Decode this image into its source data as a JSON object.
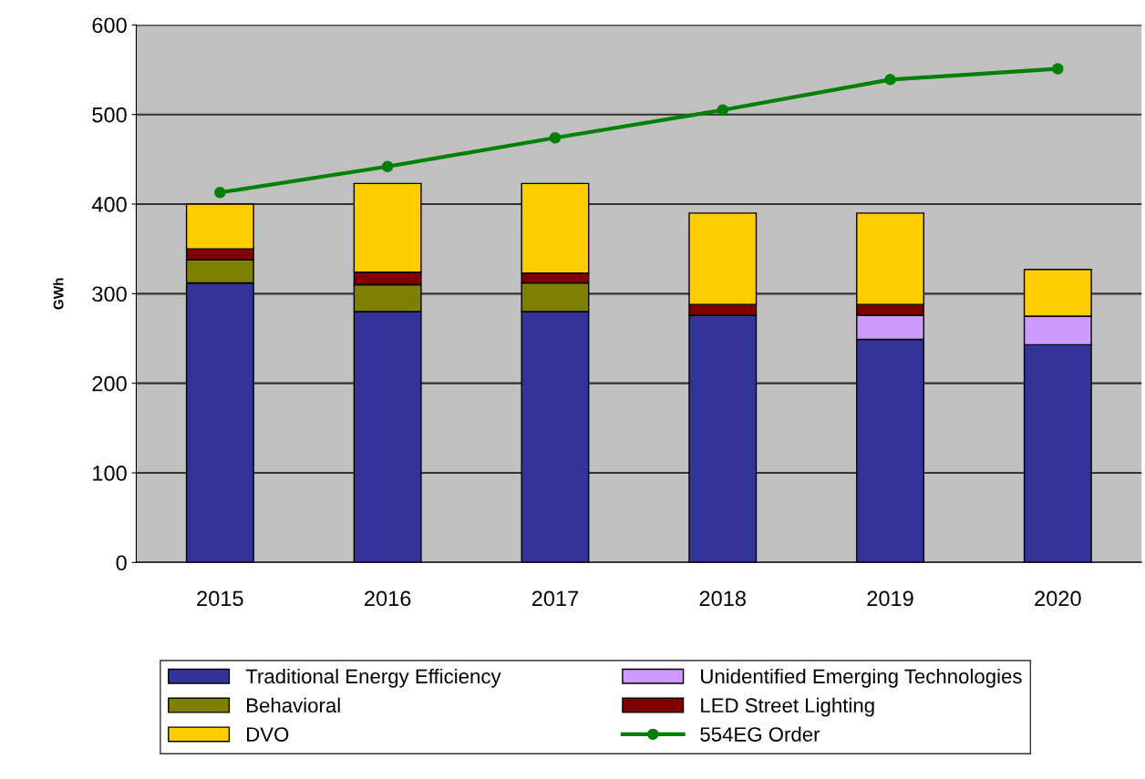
{
  "chart_data": {
    "type": "bar",
    "stacked": true,
    "ylabel": "GWh",
    "categories": [
      "2015",
      "2016",
      "2017",
      "2018",
      "2019",
      "2020"
    ],
    "series": [
      {
        "name": "Traditional Energy Efficiency",
        "color": "#333399",
        "values": [
          312,
          280,
          280,
          276,
          249,
          243
        ]
      },
      {
        "name": "Unidentified Emerging Technologies",
        "color": "#cc99ff",
        "values": [
          0,
          0,
          0,
          0,
          27,
          32
        ]
      },
      {
        "name": "Behavioral",
        "color": "#808000",
        "values": [
          26,
          30,
          32,
          0,
          0,
          0
        ]
      },
      {
        "name": "LED Street Lighting",
        "color": "#800000",
        "values": [
          12,
          14,
          11,
          12,
          12,
          0
        ]
      },
      {
        "name": "DVO",
        "color": "#ffcc00",
        "values": [
          50,
          99,
          100,
          102,
          102,
          52
        ]
      },
      {
        "name": "554EG Order",
        "color": "#008000",
        "type": "line",
        "marker": "circle",
        "values": [
          413,
          442,
          474,
          505,
          539,
          551
        ]
      }
    ],
    "ylim": [
      0,
      600
    ],
    "yticks": [
      0,
      100,
      200,
      300,
      400,
      500,
      600
    ],
    "grid": "y",
    "legend": "bottom"
  }
}
